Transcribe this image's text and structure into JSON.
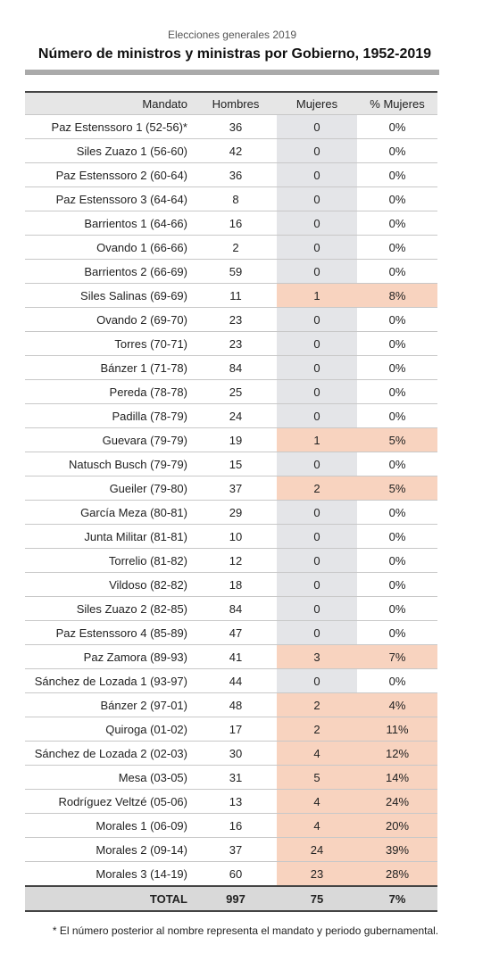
{
  "header": {
    "subtitle": "Elecciones generales 2019",
    "title": "Número de ministros y ministras por Gobierno, 1952-2019"
  },
  "table": {
    "columns": [
      "Mandato",
      "Hombres",
      "Mujeres",
      "% Mujeres"
    ],
    "rows": [
      [
        "Paz Estenssoro 1 (52-56)*",
        "36",
        "0",
        "0%"
      ],
      [
        "Siles Zuazo 1 (56-60)",
        "42",
        "0",
        "0%"
      ],
      [
        "Paz Estenssoro 2 (60-64)",
        "36",
        "0",
        "0%"
      ],
      [
        "Paz Estenssoro 3 (64-64)",
        "8",
        "0",
        "0%"
      ],
      [
        "Barrientos 1 (64-66)",
        "16",
        "0",
        "0%"
      ],
      [
        "Ovando 1 (66-66)",
        "2",
        "0",
        "0%"
      ],
      [
        "Barrientos 2 (66-69)",
        "59",
        "0",
        "0%"
      ],
      [
        "Siles Salinas (69-69)",
        "11",
        "1",
        "8%"
      ],
      [
        "Ovando 2 (69-70)",
        "23",
        "0",
        "0%"
      ],
      [
        "Torres (70-71)",
        "23",
        "0",
        "0%"
      ],
      [
        "Bánzer 1 (71-78)",
        "84",
        "0",
        "0%"
      ],
      [
        "Pereda (78-78)",
        "25",
        "0",
        "0%"
      ],
      [
        "Padilla (78-79)",
        "24",
        "0",
        "0%"
      ],
      [
        "Guevara (79-79)",
        "19",
        "1",
        "5%"
      ],
      [
        "Natusch Busch (79-79)",
        "15",
        "0",
        "0%"
      ],
      [
        "Gueiler (79-80)",
        "37",
        "2",
        "5%"
      ],
      [
        "García Meza (80-81)",
        "29",
        "0",
        "0%"
      ],
      [
        "Junta Militar (81-81)",
        "10",
        "0",
        "0%"
      ],
      [
        "Torrelio (81-82)",
        "12",
        "0",
        "0%"
      ],
      [
        "Vildoso (82-82)",
        "18",
        "0",
        "0%"
      ],
      [
        "Siles Zuazo 2 (82-85)",
        "84",
        "0",
        "0%"
      ],
      [
        "Paz Estenssoro 4 (85-89)",
        "47",
        "0",
        "0%"
      ],
      [
        "Paz Zamora (89-93)",
        "41",
        "3",
        "7%"
      ],
      [
        "Sánchez de Lozada 1 (93-97)",
        "44",
        "0",
        "0%"
      ],
      [
        "Bánzer 2 (97-01)",
        "48",
        "2",
        "4%"
      ],
      [
        "Quiroga (01-02)",
        "17",
        "2",
        "11%"
      ],
      [
        "Sánchez de Lozada 2 (02-03)",
        "30",
        "4",
        "12%"
      ],
      [
        "Mesa (03-05)",
        "31",
        "5",
        "14%"
      ],
      [
        "Rodríguez Veltzé (05-06)",
        "13",
        "4",
        "24%"
      ],
      [
        "Morales 1 (06-09)",
        "16",
        "4",
        "20%"
      ],
      [
        "Morales 2 (09-14)",
        "37",
        "24",
        "39%"
      ],
      [
        "Morales 3 (14-19)",
        "60",
        "23",
        "28%"
      ]
    ],
    "total": [
      "TOTAL",
      "997",
      "75",
      "7%"
    ]
  },
  "footnote": "* El número posterior al nombre representa el mandato y periodo gubernamental."
}
